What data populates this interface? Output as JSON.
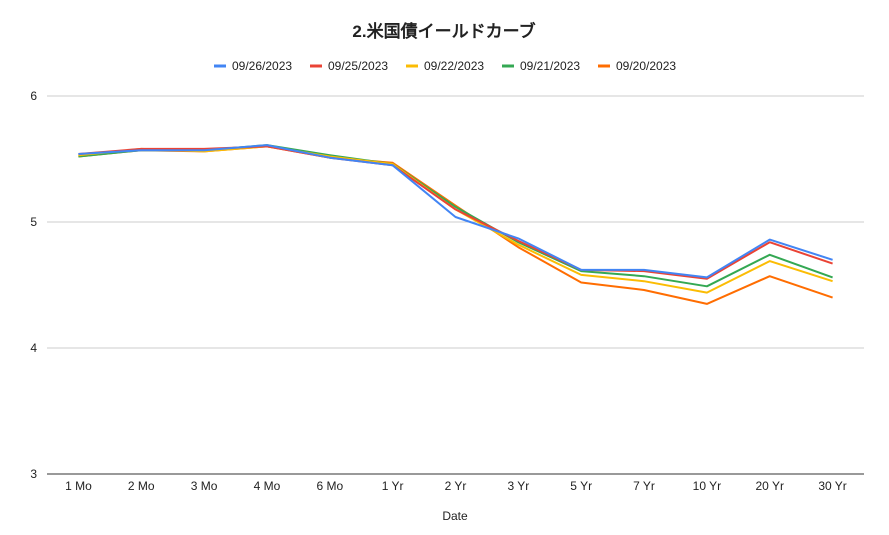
{
  "chart_data": {
    "type": "line",
    "title": "2.米国債イールドカーブ",
    "xlabel": "Date",
    "ylabel": "",
    "ylim": [
      3,
      6
    ],
    "yticks": [
      "3",
      "4",
      "5",
      "6"
    ],
    "grid": true,
    "legend_position": "top",
    "categories": [
      "1 Mo",
      "2 Mo",
      "3 Mo",
      "4 Mo",
      "6 Mo",
      "1 Yr",
      "2 Yr",
      "3 Yr",
      "5 Yr",
      "7 Yr",
      "10 Yr",
      "20 Yr",
      "30 Yr"
    ],
    "series": [
      {
        "name": "09/26/2023",
        "color": "#4285f4",
        "values": [
          5.54,
          5.57,
          5.57,
          5.61,
          5.51,
          5.45,
          5.04,
          4.87,
          4.62,
          4.62,
          4.56,
          4.86,
          4.7
        ]
      },
      {
        "name": "09/25/2023",
        "color": "#ea4335",
        "values": [
          5.54,
          5.58,
          5.58,
          5.6,
          5.51,
          5.45,
          5.1,
          4.85,
          4.62,
          4.61,
          4.55,
          4.84,
          4.67
        ]
      },
      {
        "name": "09/22/2023",
        "color": "#fbbc04",
        "values": [
          5.53,
          5.58,
          5.56,
          5.6,
          5.52,
          5.46,
          5.1,
          4.82,
          4.58,
          4.53,
          4.44,
          4.69,
          4.53
        ]
      },
      {
        "name": "09/21/2023",
        "color": "#34a853",
        "values": [
          5.52,
          5.57,
          5.57,
          5.61,
          5.53,
          5.46,
          5.12,
          4.84,
          4.61,
          4.57,
          4.49,
          4.74,
          4.56
        ]
      },
      {
        "name": "09/20/2023",
        "color": "#ff6d01",
        "values": [
          5.52,
          5.57,
          5.56,
          5.6,
          5.51,
          5.47,
          5.13,
          4.8,
          4.52,
          4.46,
          4.35,
          4.57,
          4.4
        ]
      }
    ]
  }
}
